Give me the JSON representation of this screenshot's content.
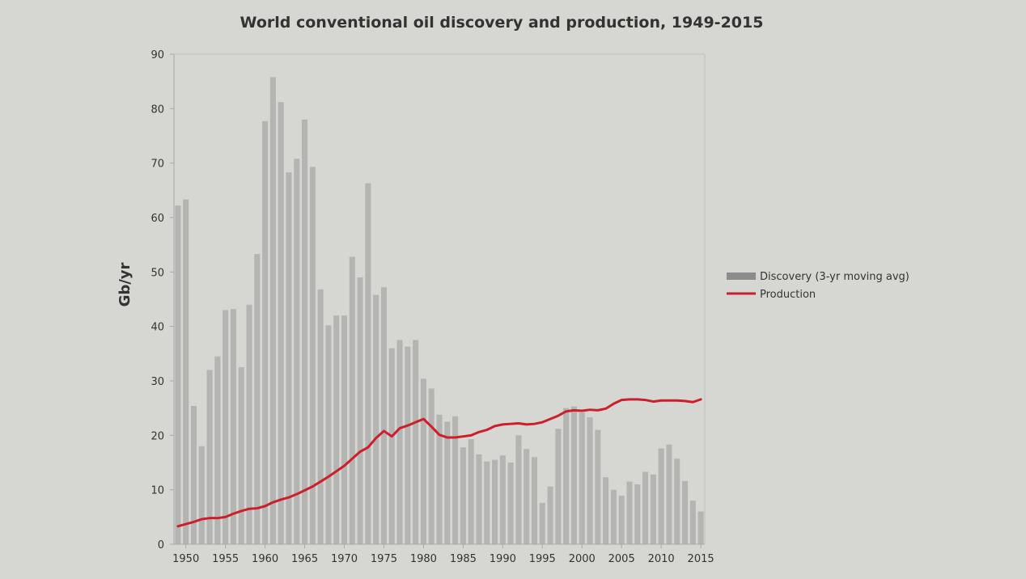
{
  "chart_data": {
    "type": "bar",
    "title": "World conventional oil discovery and production, 1949-2015",
    "xlabel": "",
    "ylabel": "Gb/yr",
    "ylim": [
      0,
      90
    ],
    "yticks": [
      "0",
      "10",
      "20",
      "30",
      "40",
      "50",
      "60",
      "70",
      "80",
      "90"
    ],
    "xticks": [
      "1950",
      "1955",
      "1960",
      "1965",
      "1970",
      "1975",
      "1980",
      "1985",
      "1990",
      "1995",
      "2000",
      "2005",
      "2010",
      "2015"
    ],
    "grid": false,
    "legend_position": "right",
    "colors": {
      "discovery": "#b4b4b2",
      "legend_discovery": "#8c8c8c",
      "production": "#cc1f2c",
      "axis": "#a8a8a8",
      "background": "#d6d6d3"
    },
    "x": [
      1949,
      1950,
      1951,
      1952,
      1953,
      1954,
      1955,
      1956,
      1957,
      1958,
      1959,
      1960,
      1961,
      1962,
      1963,
      1964,
      1965,
      1966,
      1967,
      1968,
      1969,
      1970,
      1971,
      1972,
      1973,
      1974,
      1975,
      1976,
      1977,
      1978,
      1979,
      1980,
      1981,
      1982,
      1983,
      1984,
      1985,
      1986,
      1987,
      1988,
      1989,
      1990,
      1991,
      1992,
      1993,
      1994,
      1995,
      1996,
      1997,
      1998,
      1999,
      2000,
      2001,
      2002,
      2003,
      2004,
      2005,
      2006,
      2007,
      2008,
      2009,
      2010,
      2011,
      2012,
      2013,
      2014,
      2015
    ],
    "series": [
      {
        "name": "Discovery (3-yr moving avg)",
        "kind": "bar",
        "values": [
          62.2,
          63.3,
          25.4,
          18,
          32,
          34.5,
          43,
          43.2,
          32.5,
          44,
          53.3,
          77.7,
          85.8,
          81.2,
          68.3,
          70.8,
          78,
          69.3,
          46.8,
          40.2,
          42,
          42,
          52.8,
          49,
          66.3,
          45.8,
          47.2,
          36,
          37.5,
          36.3,
          37.5,
          30.4,
          28.6,
          23.8,
          22.5,
          23.5,
          17.8,
          19.3,
          16.5,
          15.2,
          15.5,
          16.3,
          15,
          20,
          17.5,
          16,
          7.6,
          10.6,
          21.2,
          25,
          25.3,
          24.2,
          23.3,
          21,
          12.3,
          10,
          8.9,
          11.5,
          11,
          13.3,
          12.8,
          17.6,
          18.3,
          15.7,
          11.6,
          8,
          6
        ]
      },
      {
        "name": "Production",
        "kind": "line",
        "values": [
          3.3,
          3.7,
          4.1,
          4.6,
          4.8,
          4.8,
          5,
          5.6,
          6.1,
          6.5,
          6.6,
          7,
          7.7,
          8.2,
          8.6,
          9.2,
          9.9,
          10.6,
          11.5,
          12.4,
          13.4,
          14.4,
          15.7,
          17,
          17.8,
          19.5,
          20.8,
          19.8,
          21.3,
          21.8,
          22.4,
          23,
          21.6,
          20.1,
          19.6,
          19.6,
          19.8,
          20,
          20.6,
          21,
          21.7,
          22,
          22.1,
          22.2,
          22,
          22.1,
          22.4,
          23,
          23.6,
          24.4,
          24.6,
          24.5,
          24.7,
          24.6,
          24.9,
          25.8,
          26.5,
          26.6,
          26.6,
          26.5,
          26.2,
          26.4,
          26.4,
          26.4,
          26.3,
          26.1,
          26.6
        ]
      }
    ]
  }
}
